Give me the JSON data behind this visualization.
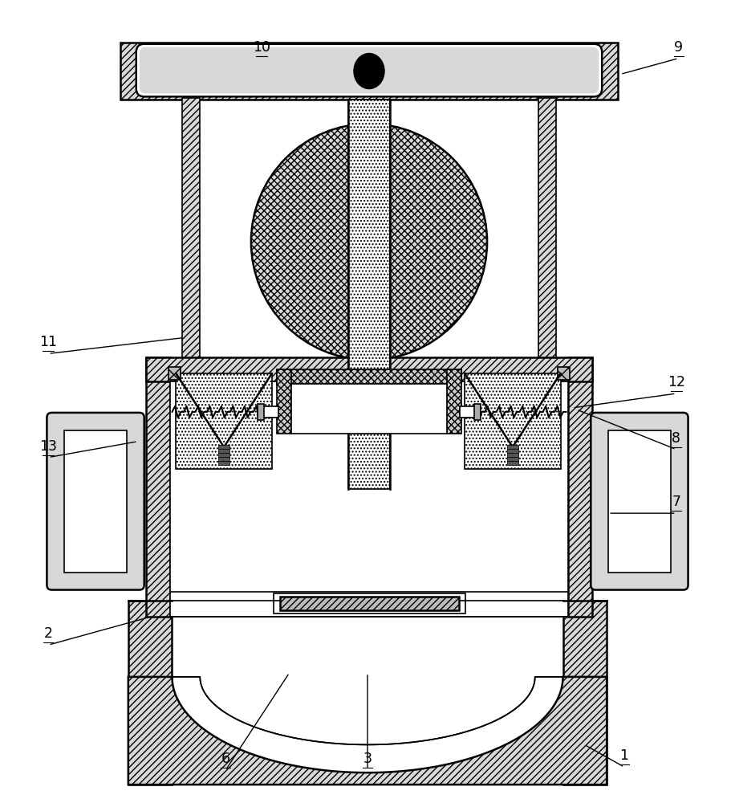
{
  "bg_color": "#ffffff",
  "figsize": [
    9.16,
    10.0
  ],
  "dpi": 100,
  "labels": [
    [
      "1",
      780,
      42,
      730,
      70
    ],
    [
      "2",
      58,
      195,
      185,
      230
    ],
    [
      "3",
      458,
      38,
      458,
      160
    ],
    [
      "6",
      280,
      38,
      360,
      160
    ],
    [
      "7",
      845,
      360,
      760,
      360
    ],
    [
      "8",
      845,
      440,
      720,
      490
    ],
    [
      "9",
      848,
      930,
      775,
      910
    ],
    [
      "10",
      325,
      930,
      435,
      910
    ],
    [
      "11",
      58,
      560,
      228,
      580
    ],
    [
      "12",
      845,
      510,
      715,
      492
    ],
    [
      "13",
      58,
      430,
      170,
      450
    ]
  ]
}
